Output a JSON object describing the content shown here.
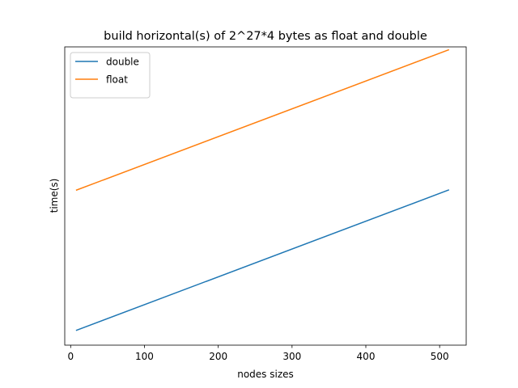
{
  "chart_data": {
    "type": "line",
    "title": "build horizontal(s) of 2^27*4 bytes as float and double",
    "xlabel": "nodes sizes",
    "ylabel": "time(s)",
    "xlim": [
      -8,
      536
    ],
    "ylim": [
      0,
      1
    ],
    "xticks": [
      0,
      100,
      200,
      300,
      400,
      500
    ],
    "yticks": [],
    "grid": false,
    "legend": "top-left",
    "series": [
      {
        "name": "double",
        "color": "#1f77b4",
        "x": [
          8,
          512
        ],
        "y": [
          0.05,
          0.52
        ]
      },
      {
        "name": "float",
        "color": "#ff7f0e",
        "x": [
          8,
          512
        ],
        "y": [
          0.52,
          0.99
        ]
      }
    ]
  }
}
